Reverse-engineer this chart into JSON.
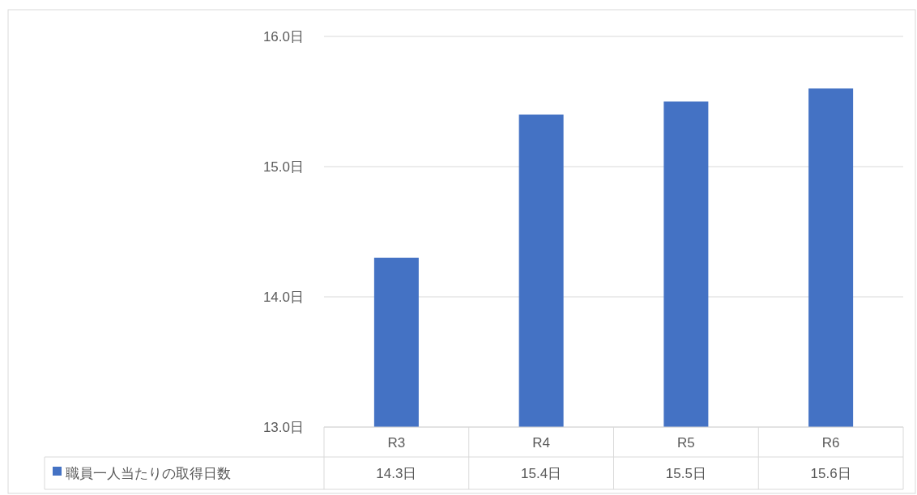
{
  "chart_data": {
    "type": "bar",
    "categories": [
      "R3",
      "R4",
      "R5",
      "R6"
    ],
    "series": [
      {
        "name": "職員一人当たりの取得日数",
        "color": "#4472c4",
        "values": [
          14.3,
          15.4,
          15.5,
          15.6
        ],
        "value_labels": [
          "14.3日",
          "15.4日",
          "15.5日",
          "15.6日"
        ]
      }
    ],
    "ylim": [
      13,
      16
    ],
    "yticks": [
      {
        "value": 13,
        "label": "13.0日"
      },
      {
        "value": 14,
        "label": "14.0日"
      },
      {
        "value": 15,
        "label": "15.0日"
      },
      {
        "value": 16,
        "label": "16.0日"
      }
    ],
    "grid": "y",
    "legend": "bottom"
  }
}
